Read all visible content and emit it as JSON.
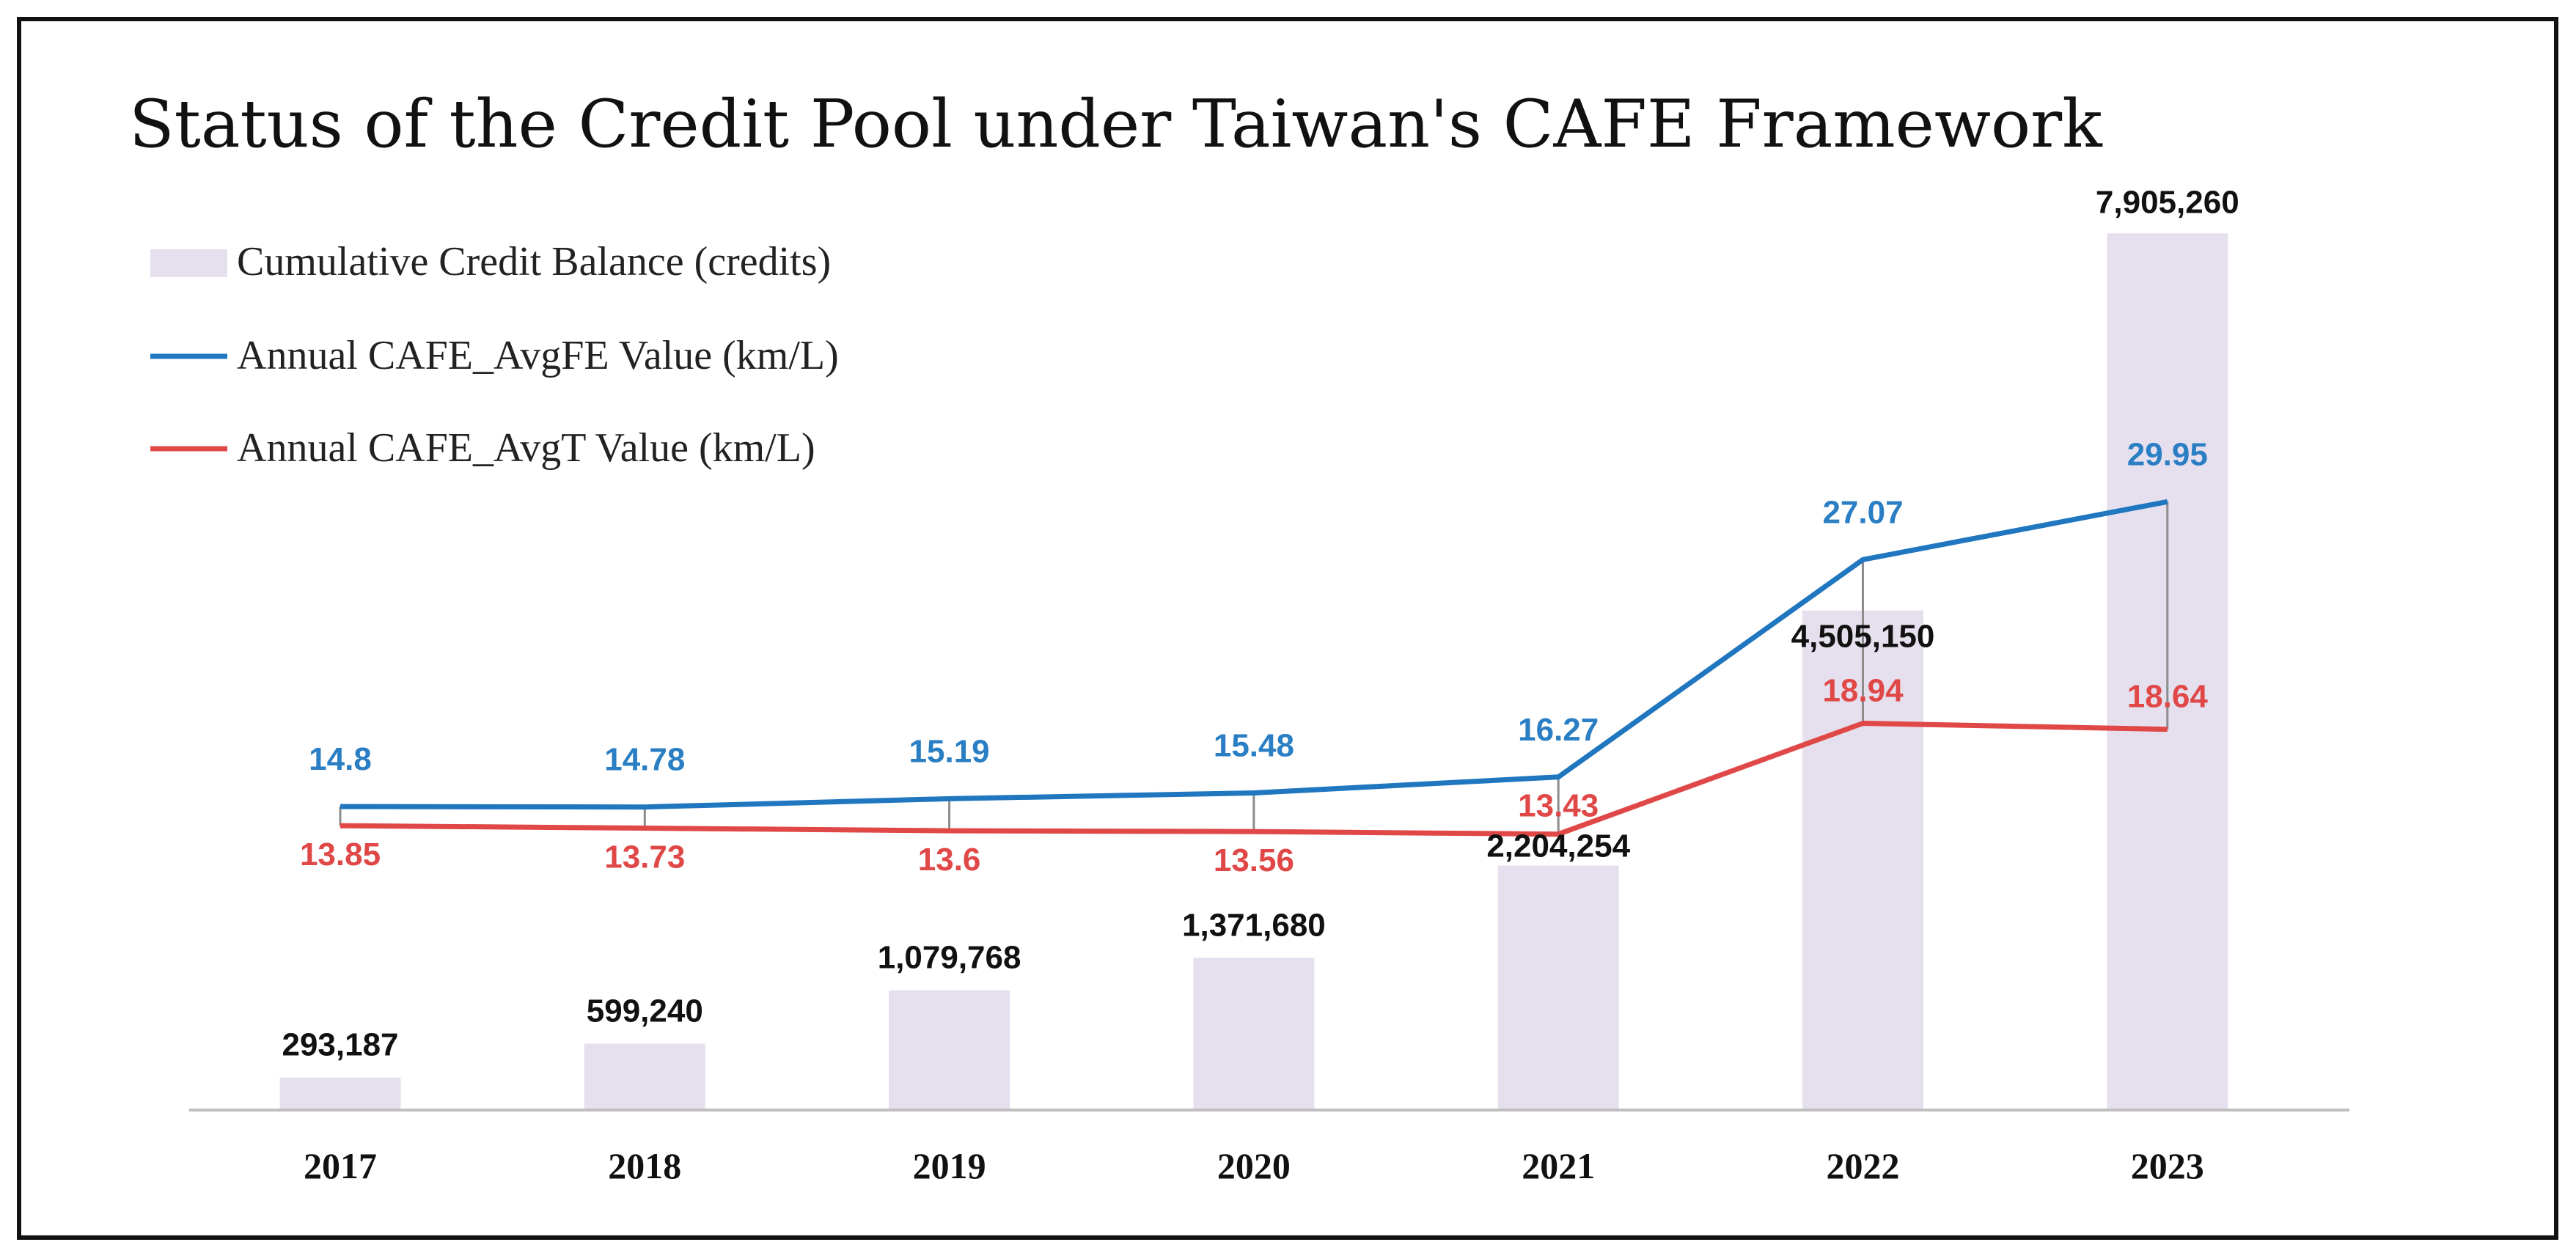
{
  "chart_data": {
    "type": "bar",
    "title": "Status of the Credit Pool under Taiwan's CAFE Framework",
    "categories": [
      "2017",
      "2018",
      "2019",
      "2020",
      "2021",
      "2022",
      "2023"
    ],
    "xlabel": "",
    "ylabel": "",
    "ylim": [
      0,
      8000000
    ],
    "line_ylim": [
      0,
      32
    ],
    "grid": false,
    "legend_position": "top-left",
    "series": [
      {
        "name": "Cumulative Credit Balance (credits)",
        "type": "bar",
        "axis": "left",
        "color": "#e6e0ee",
        "values": [
          293187,
          599240,
          1079768,
          1371680,
          2204254,
          4505150,
          7905260
        ],
        "labels": [
          "293,187",
          "599,240",
          "1,079,768",
          "1,371,680",
          "2,204,254",
          "4,505,150",
          "7,905,260"
        ]
      },
      {
        "name": "Annual CAFE_AvgFE Value (km/L)",
        "type": "line",
        "axis": "right",
        "color": "#2077c0",
        "values": [
          14.8,
          14.78,
          15.19,
          15.48,
          16.27,
          27.07,
          29.95
        ],
        "labels": [
          "14.8",
          "14.78",
          "15.19",
          "15.48",
          "16.27",
          "27.07",
          "29.95"
        ]
      },
      {
        "name": "Annual CAFE_AvgT Value (km/L)",
        "type": "line",
        "axis": "right",
        "color": "#e04848",
        "values": [
          13.85,
          13.73,
          13.6,
          13.56,
          13.43,
          18.94,
          18.64
        ],
        "labels": [
          "13.85",
          "13.73",
          "13.6",
          "13.56",
          "13.43",
          "18.94",
          "18.64"
        ]
      }
    ]
  },
  "colors": {
    "bar_fill": "#e6e0ee",
    "fe_line": "#2077c0",
    "fe_label": "#2a7ec4",
    "t_line": "#e04848",
    "t_label": "#e04848",
    "axis_line": "#bfbfbf",
    "drop_line": "#8c8c8c",
    "frame": "#111111"
  }
}
